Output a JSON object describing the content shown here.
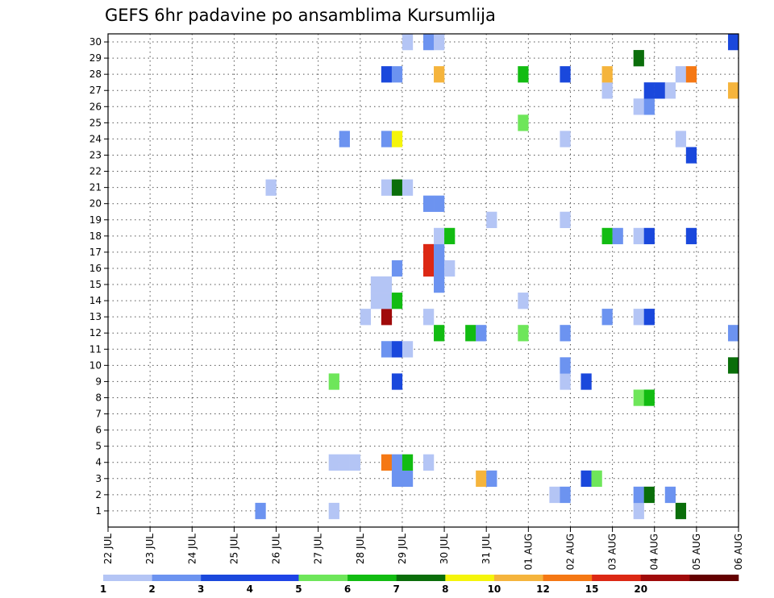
{
  "chart_data": {
    "type": "heatmap",
    "title": "GEFS 6hr padavine po ansamblima Kursumlija",
    "xlabel": "",
    "ylabel": "",
    "x_tick_labels": [
      "22 JUL",
      "23 JUL",
      "24 JUL",
      "25 JUL",
      "26 JUL",
      "27 JUL",
      "28 JUL",
      "29 JUL",
      "30 JUL",
      "31 JUL",
      "01 AUG",
      "02 AUG",
      "03 AUG",
      "04 AUG",
      "05 AUG",
      "06 AUG"
    ],
    "y_tick_labels": [
      "1",
      "2",
      "3",
      "4",
      "5",
      "6",
      "7",
      "8",
      "9",
      "10",
      "11",
      "12",
      "13",
      "14",
      "15",
      "16",
      "17",
      "18",
      "19",
      "20",
      "21",
      "22",
      "23",
      "24",
      "25",
      "26",
      "27",
      "28",
      "29",
      "30"
    ],
    "xlim": [
      0,
      60
    ],
    "ylim": [
      0,
      30
    ],
    "grid": true,
    "legend_placement": "bottom",
    "x_unit": "6-hour steps from 22 JUL 00Z",
    "colorbar": {
      "labels": [
        "1",
        "2",
        "3",
        "4",
        "5",
        "6",
        "7",
        "8",
        "10",
        "12",
        "15",
        "20"
      ],
      "colors": [
        "#b4c5f5",
        "#6c93f0",
        "#1a48dc",
        "#1e44e6",
        "#6ee65a",
        "#12bc12",
        "#0a6e0a",
        "#f5f50a",
        "#f5b43c",
        "#f57814",
        "#dc2814",
        "#a00a0a",
        "#640000"
      ]
    },
    "cells": [
      {
        "t": 14.5,
        "m": 0,
        "v": 2
      },
      {
        "t": 21.5,
        "m": 0,
        "v": 1
      },
      {
        "t": 50.5,
        "m": 0,
        "v": 1
      },
      {
        "t": 54.5,
        "m": 0,
        "v": 7
      },
      {
        "t": 42.5,
        "m": 1,
        "v": 1
      },
      {
        "t": 43.5,
        "m": 1,
        "v": 2
      },
      {
        "t": 50.5,
        "m": 1,
        "v": 2
      },
      {
        "t": 51.5,
        "m": 1,
        "v": 7
      },
      {
        "t": 53.5,
        "m": 1,
        "v": 2
      },
      {
        "t": 27.5,
        "m": 2,
        "v": 2
      },
      {
        "t": 28.5,
        "m": 2,
        "v": 2
      },
      {
        "t": 35.5,
        "m": 2,
        "v": 10
      },
      {
        "t": 36.5,
        "m": 2,
        "v": 2
      },
      {
        "t": 45.5,
        "m": 2,
        "v": 3
      },
      {
        "t": 46.5,
        "m": 2,
        "v": 5
      },
      {
        "t": 21.5,
        "m": 3,
        "v": 1
      },
      {
        "t": 22.5,
        "m": 3,
        "v": 1
      },
      {
        "t": 23.5,
        "m": 3,
        "v": 1
      },
      {
        "t": 26.5,
        "m": 3,
        "v": 12
      },
      {
        "t": 27.5,
        "m": 3,
        "v": 2
      },
      {
        "t": 28.5,
        "m": 3,
        "v": 6
      },
      {
        "t": 30.5,
        "m": 3,
        "v": 1
      },
      {
        "t": 50.5,
        "m": 7,
        "v": 5
      },
      {
        "t": 51.5,
        "m": 7,
        "v": 6
      },
      {
        "t": 21.5,
        "m": 8,
        "v": 5
      },
      {
        "t": 27.5,
        "m": 8,
        "v": 3
      },
      {
        "t": 43.5,
        "m": 8,
        "v": 1
      },
      {
        "t": 45.5,
        "m": 8,
        "v": 3
      },
      {
        "t": 43.5,
        "m": 9,
        "v": 2
      },
      {
        "t": 59.5,
        "m": 9,
        "v": 7
      },
      {
        "t": 26.5,
        "m": 10,
        "v": 2
      },
      {
        "t": 27.5,
        "m": 10,
        "v": 3
      },
      {
        "t": 28.5,
        "m": 10,
        "v": 1
      },
      {
        "t": 31.5,
        "m": 11,
        "v": 6
      },
      {
        "t": 34.5,
        "m": 11,
        "v": 6
      },
      {
        "t": 35.5,
        "m": 11,
        "v": 2
      },
      {
        "t": 39.5,
        "m": 11,
        "v": 5
      },
      {
        "t": 43.5,
        "m": 11,
        "v": 2
      },
      {
        "t": 59.5,
        "m": 11,
        "v": 2
      },
      {
        "t": 24.5,
        "m": 12,
        "v": 1
      },
      {
        "t": 26.5,
        "m": 12,
        "v": 20
      },
      {
        "t": 30.5,
        "m": 12,
        "v": 1
      },
      {
        "t": 47.5,
        "m": 12,
        "v": 2
      },
      {
        "t": 50.5,
        "m": 12,
        "v": 1
      },
      {
        "t": 51.5,
        "m": 12,
        "v": 3
      },
      {
        "t": 25.5,
        "m": 13,
        "v": 1
      },
      {
        "t": 26.5,
        "m": 13,
        "v": 1
      },
      {
        "t": 27.5,
        "m": 13,
        "v": 6
      },
      {
        "t": 39.5,
        "m": 13,
        "v": 1
      },
      {
        "t": 25.5,
        "m": 14,
        "v": 1
      },
      {
        "t": 26.5,
        "m": 14,
        "v": 1
      },
      {
        "t": 31.5,
        "m": 14,
        "v": 2
      },
      {
        "t": 27.5,
        "m": 15,
        "v": 2
      },
      {
        "t": 30.5,
        "m": 15,
        "v": 15
      },
      {
        "t": 31.5,
        "m": 15,
        "v": 2
      },
      {
        "t": 32.5,
        "m": 15,
        "v": 1
      },
      {
        "t": 30.5,
        "m": 16,
        "v": 15
      },
      {
        "t": 31.5,
        "m": 16,
        "v": 2
      },
      {
        "t": 31.5,
        "m": 17,
        "v": 1
      },
      {
        "t": 32.5,
        "m": 17,
        "v": 6
      },
      {
        "t": 47.5,
        "m": 17,
        "v": 6
      },
      {
        "t": 48.5,
        "m": 17,
        "v": 2
      },
      {
        "t": 50.5,
        "m": 17,
        "v": 1
      },
      {
        "t": 51.5,
        "m": 17,
        "v": 3
      },
      {
        "t": 55.5,
        "m": 17,
        "v": 3
      },
      {
        "t": 36.5,
        "m": 18,
        "v": 1
      },
      {
        "t": 43.5,
        "m": 18,
        "v": 1
      },
      {
        "t": 30.5,
        "m": 19,
        "v": 2
      },
      {
        "t": 31.5,
        "m": 19,
        "v": 2
      },
      {
        "t": 15.5,
        "m": 20,
        "v": 1
      },
      {
        "t": 26.5,
        "m": 20,
        "v": 1
      },
      {
        "t": 27.5,
        "m": 20,
        "v": 7
      },
      {
        "t": 28.5,
        "m": 20,
        "v": 1
      },
      {
        "t": 55.5,
        "m": 22,
        "v": 3
      },
      {
        "t": 22.5,
        "m": 23,
        "v": 2
      },
      {
        "t": 26.5,
        "m": 23,
        "v": 2
      },
      {
        "t": 27.5,
        "m": 23,
        "v": 8
      },
      {
        "t": 43.5,
        "m": 23,
        "v": 1
      },
      {
        "t": 54.5,
        "m": 23,
        "v": 1
      },
      {
        "t": 39.5,
        "m": 24,
        "v": 5
      },
      {
        "t": 50.5,
        "m": 25,
        "v": 1
      },
      {
        "t": 51.5,
        "m": 25,
        "v": 2
      },
      {
        "t": 47.5,
        "m": 26,
        "v": 1
      },
      {
        "t": 51.5,
        "m": 26,
        "v": 3
      },
      {
        "t": 52.5,
        "m": 26,
        "v": 3
      },
      {
        "t": 53.5,
        "m": 26,
        "v": 1
      },
      {
        "t": 59.5,
        "m": 26,
        "v": 10
      },
      {
        "t": 26.5,
        "m": 27,
        "v": 3
      },
      {
        "t": 27.5,
        "m": 27,
        "v": 2
      },
      {
        "t": 31.5,
        "m": 27,
        "v": 10
      },
      {
        "t": 39.5,
        "m": 27,
        "v": 6
      },
      {
        "t": 43.5,
        "m": 27,
        "v": 3
      },
      {
        "t": 47.5,
        "m": 27,
        "v": 10
      },
      {
        "t": 54.5,
        "m": 27,
        "v": 1
      },
      {
        "t": 55.5,
        "m": 27,
        "v": 12
      },
      {
        "t": 50.5,
        "m": 28,
        "v": 7
      },
      {
        "t": 28.5,
        "m": 29,
        "v": 1
      },
      {
        "t": 30.5,
        "m": 29,
        "v": 2
      },
      {
        "t": 31.5,
        "m": 29,
        "v": 1
      },
      {
        "t": 59.5,
        "m": 29,
        "v": 3
      }
    ]
  }
}
